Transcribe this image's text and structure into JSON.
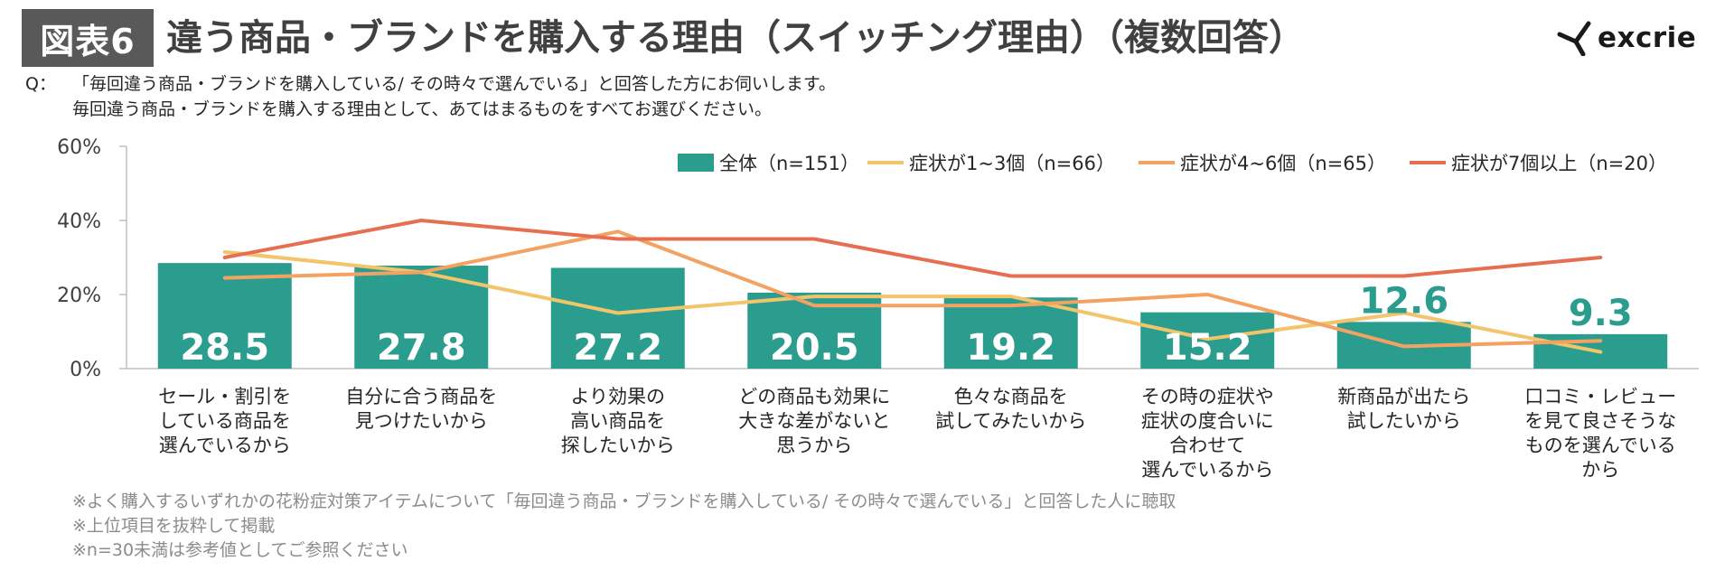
{
  "header": {
    "badge": "図表6",
    "title": "違う商品・ブランドを購入する理由（スイッチング理由）（複数回答）",
    "logo_text": "excrie"
  },
  "question": {
    "label": "Q：",
    "line1": "「毎回違う商品・ブランドを購入している/ その時々で選んでいる」と回答した方にお伺いします。",
    "line2": "毎回違う商品・ブランドを購入する理由として、あてはまるものをすべてお選びください。"
  },
  "notes": [
    "※よく購入するいずれかの花粉症対策アイテムについて「毎回違う商品・ブランドを購入している/ その時々で選んでいる」と回答した人に聴取",
    "※上位項目を抜粋して掲載",
    "※n=30未満は参考値としてご参照ください"
  ],
  "chart_data": {
    "type": "bar",
    "ylim": [
      0,
      60
    ],
    "y_ticks": [
      0,
      20,
      40,
      60
    ],
    "y_tick_labels": [
      "0%",
      "20%",
      "40%",
      "60%"
    ],
    "legend_position": "top-right",
    "categories": [
      [
        "セール・割引を",
        "している商品を",
        "選んでいるから"
      ],
      [
        "自分に合う商品を",
        "見つけたいから"
      ],
      [
        "より効果の",
        "高い商品を",
        "探したいから"
      ],
      [
        "どの商品も効果に",
        "大きな差がないと",
        "思うから"
      ],
      [
        "色々な商品を",
        "試してみたいから"
      ],
      [
        "その時の症状や",
        "症状の度合いに",
        "合わせて",
        "選んでいるから"
      ],
      [
        "新商品が出たら",
        "試したいから"
      ],
      [
        "口コミ・レビュー",
        "を見て良さそうな",
        "ものを選んでいる",
        "から"
      ]
    ],
    "series": [
      {
        "name": "全体（n=151）",
        "kind": "bar",
        "color": "#2a9d8f",
        "values": [
          28.5,
          27.8,
          27.2,
          20.5,
          19.2,
          15.2,
          12.6,
          9.3
        ],
        "labels": [
          "28.5",
          "27.8",
          "27.2",
          "20.5",
          "19.2",
          "15.2",
          "12.6",
          "9.3"
        ]
      },
      {
        "name": "症状が1~3個（n=66）",
        "kind": "line",
        "color": "#f2c46b",
        "values": [
          31.5,
          26,
          15,
          19.5,
          19.5,
          8,
          15,
          4.5
        ]
      },
      {
        "name": "症状が4~6個（n=65）",
        "kind": "line",
        "color": "#f4a261",
        "values": [
          24.5,
          26,
          37,
          17,
          17,
          20,
          6,
          7.5
        ]
      },
      {
        "name": "症状が7個以上（n=20）",
        "kind": "line",
        "color": "#e76f51",
        "values": [
          30,
          40,
          35,
          35,
          25,
          25,
          25,
          30
        ]
      }
    ]
  }
}
